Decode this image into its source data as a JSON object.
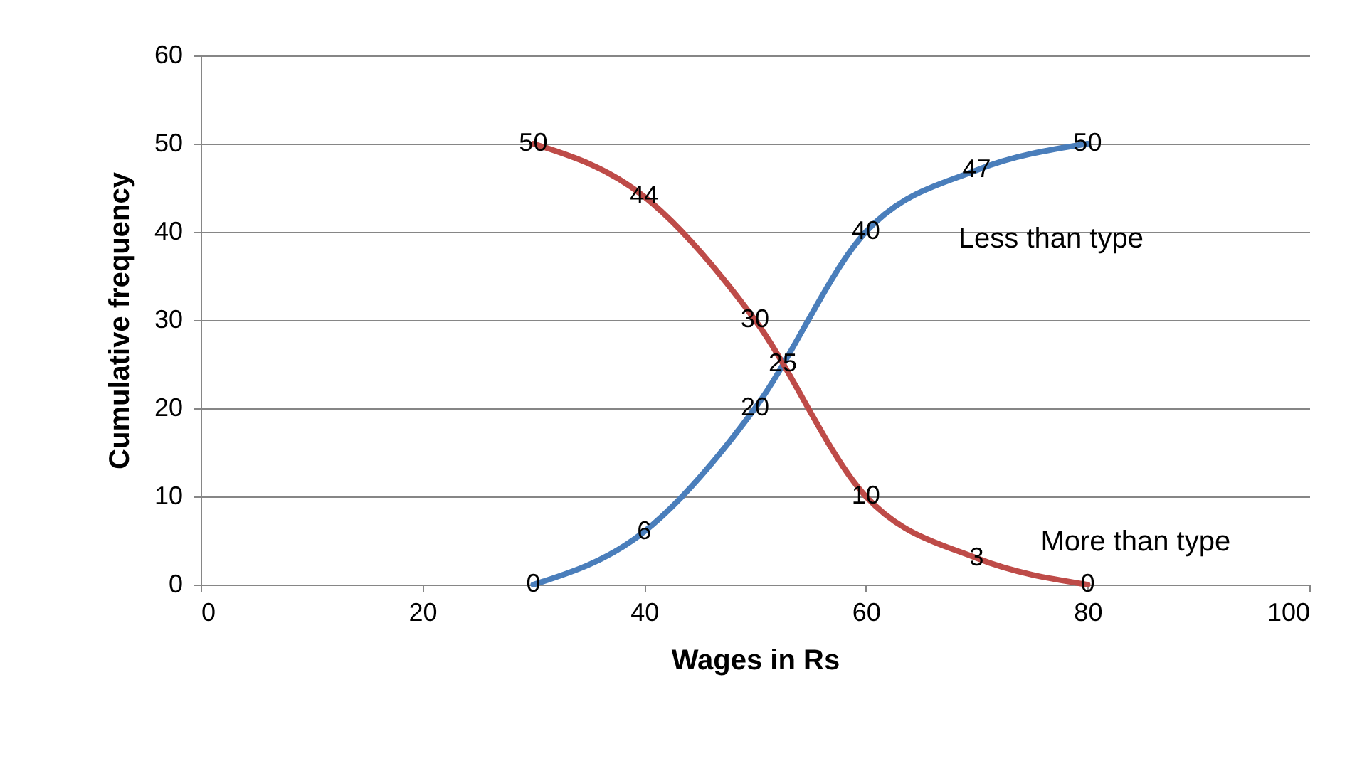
{
  "chart_data": {
    "type": "line",
    "xlabel": "Wages in Rs",
    "ylabel": "Cumulative frequency",
    "x": [
      30,
      40,
      50,
      60,
      70,
      80
    ],
    "series": [
      {
        "name": "Less than type",
        "color": "#4a7ebb",
        "values": [
          0,
          6,
          20,
          40,
          47,
          50
        ]
      },
      {
        "name": "More than type",
        "color": "#be4b48",
        "values": [
          50,
          44,
          30,
          10,
          3,
          0
        ]
      }
    ],
    "annotations": [
      {
        "text": "25",
        "x": 52.5,
        "y": 25
      }
    ],
    "xlim": [
      0,
      100
    ],
    "xticks": [
      0,
      20,
      40,
      60,
      80,
      100
    ],
    "ylim": [
      0,
      60
    ],
    "yticks": [
      0,
      10,
      20,
      30,
      40,
      50,
      60
    ],
    "grid": "y",
    "legend": false,
    "data_labels": true,
    "marker": "none",
    "line_style": "solid"
  }
}
